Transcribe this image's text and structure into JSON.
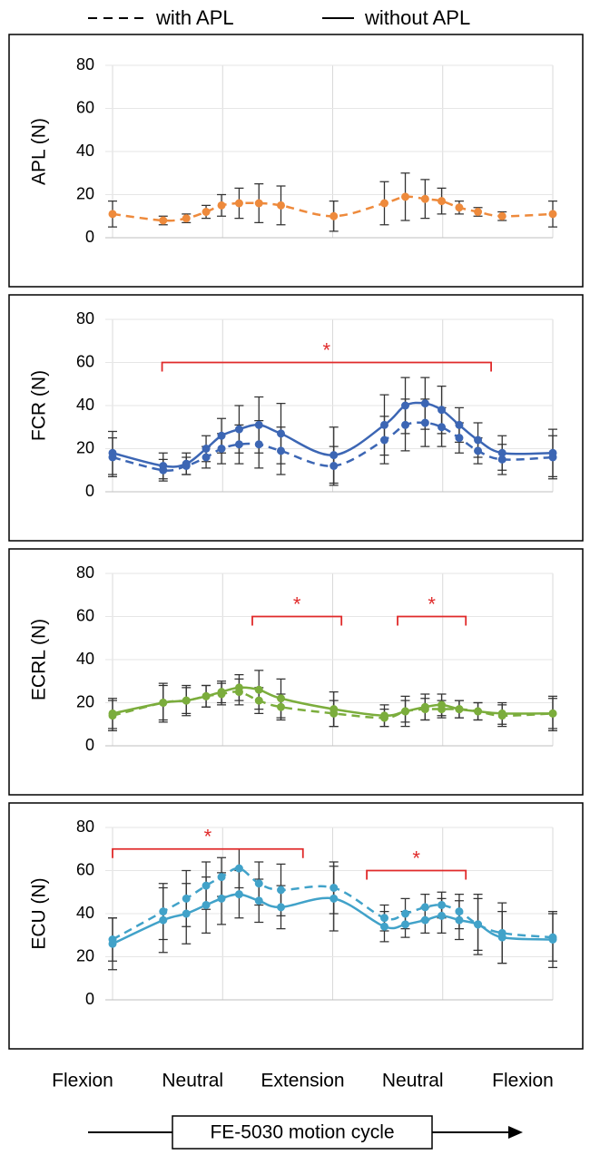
{
  "chart_data": {
    "type": "line",
    "legend": [
      "with APL",
      "without APL"
    ],
    "xlabel": "FE-5030 motion cycle",
    "xlim": [
      0,
      4
    ],
    "xticks": [
      {
        "value": 0,
        "label": "Flexion"
      },
      {
        "value": 1,
        "label": "Neutral"
      },
      {
        "value": 2,
        "label": "Extension"
      },
      {
        "value": 3,
        "label": "Neutral"
      },
      {
        "value": 4,
        "label": "Flexion"
      }
    ],
    "grid": true,
    "annotation_color": "#e02a2a",
    "panels": [
      {
        "ylabel": "APL (N)",
        "ylim": [
          0,
          80
        ],
        "yticks": [
          0,
          20,
          40,
          60,
          80
        ],
        "series": [
          {
            "color": "#ee8a3c",
            "dashed": true,
            "x": [
              0,
              0.46,
              0.67,
              0.85,
              0.99,
              1.15,
              1.33,
              1.53,
              2.01,
              2.47,
              2.66,
              2.84,
              2.99,
              3.15,
              3.32,
              3.54,
              4.0
            ],
            "values": [
              11,
              8,
              9,
              12,
              15,
              16,
              16,
              15,
              10,
              16,
              19,
              18,
              17,
              14,
              12,
              10,
              11
            ],
            "errors": [
              6,
              2,
              2,
              3,
              5,
              7,
              9,
              9,
              7,
              10,
              11,
              9,
              6,
              3,
              2,
              2,
              6
            ]
          }
        ],
        "annotations": []
      },
      {
        "ylabel": "FCR (N)",
        "ylim": [
          0,
          80
        ],
        "yticks": [
          0,
          20,
          40,
          60,
          80
        ],
        "series": [
          {
            "color": "#3c66b4",
            "dashed": true,
            "x": [
              0,
              0.46,
              0.67,
              0.85,
              0.99,
              1.15,
              1.33,
              1.53,
              2.01,
              2.47,
              2.66,
              2.84,
              2.99,
              3.15,
              3.32,
              3.54,
              4.0
            ],
            "values": [
              16,
              10,
              12,
              16,
              20,
              22,
              22,
              19,
              12,
              24,
              31,
              32,
              30,
              25,
              19,
              15,
              16
            ],
            "errors": [
              9,
              5,
              4,
              5,
              7,
              9,
              11,
              11,
              9,
              11,
              12,
              11,
              9,
              7,
              6,
              7,
              10
            ]
          },
          {
            "color": "#3c66b4",
            "dashed": false,
            "x": [
              0,
              0.46,
              0.67,
              0.85,
              0.99,
              1.15,
              1.33,
              1.53,
              2.01,
              2.47,
              2.66,
              2.84,
              2.99,
              3.15,
              3.32,
              3.54,
              4.0
            ],
            "values": [
              18,
              12,
              13,
              20,
              26,
              29,
              31,
              27,
              17,
              31,
              40,
              41,
              38,
              31,
              24,
              18,
              18
            ],
            "errors": [
              10,
              6,
              5,
              6,
              8,
              11,
              13,
              14,
              13,
              14,
              13,
              12,
              11,
              8,
              8,
              8,
              11
            ]
          }
        ],
        "annotations": [
          {
            "text": "*",
            "x": [
              0.45,
              3.44
            ],
            "y": 60
          }
        ]
      },
      {
        "ylabel": "ECRL (N)",
        "ylim": [
          0,
          80
        ],
        "yticks": [
          0,
          20,
          40,
          60,
          80
        ],
        "series": [
          {
            "color": "#7bad3c",
            "dashed": true,
            "x": [
              0,
              0.46,
              0.67,
              0.85,
              0.99,
              1.15,
              1.33,
              1.53,
              2.01,
              2.47,
              2.66,
              2.84,
              2.99,
              3.15,
              3.32,
              3.54,
              4.0
            ],
            "values": [
              14,
              20,
              21,
              23,
              24,
              25,
              21,
              18,
              15,
              13,
              16,
              17,
              17,
              17,
              16,
              14,
              15
            ],
            "errors": [
              7,
              8,
              6,
              5,
              5,
              6,
              6,
              6,
              6,
              4,
              5,
              5,
              4,
              4,
              4,
              5,
              7
            ]
          },
          {
            "color": "#7bad3c",
            "dashed": false,
            "x": [
              0,
              0.46,
              0.67,
              0.85,
              0.99,
              1.15,
              1.33,
              1.53,
              2.01,
              2.47,
              2.66,
              2.84,
              2.99,
              3.15,
              3.32,
              3.54,
              4.0
            ],
            "values": [
              15,
              20,
              21,
              23,
              25,
              27,
              26,
              22,
              17,
              14,
              16,
              18,
              19,
              17,
              16,
              15,
              15
            ],
            "errors": [
              7,
              9,
              7,
              5,
              5,
              6,
              9,
              9,
              8,
              5,
              7,
              6,
              5,
              4,
              4,
              5,
              8
            ]
          }
        ],
        "annotations": [
          {
            "text": "*",
            "x": [
              1.27,
              2.08
            ],
            "y": 60
          },
          {
            "text": "*",
            "x": [
              2.59,
              3.21
            ],
            "y": 60
          }
        ]
      },
      {
        "ylabel": "ECU (N)",
        "ylim": [
          0,
          80
        ],
        "yticks": [
          0,
          20,
          40,
          60,
          80
        ],
        "series": [
          {
            "color": "#41a2c9",
            "dashed": true,
            "x": [
              0,
              0.46,
              0.67,
              0.85,
              0.99,
              1.15,
              1.33,
              1.53,
              2.01,
              2.47,
              2.66,
              2.84,
              2.99,
              3.15,
              3.32,
              3.54,
              4.0
            ],
            "values": [
              28,
              41,
              47,
              53,
              57,
              61,
              54,
              51,
              52,
              38,
              40,
              43,
              44,
              41,
              35,
              31,
              29
            ],
            "errors": [
              10,
              13,
              13,
              11,
              9,
              9,
              10,
              12,
              12,
              6,
              7,
              6,
              6,
              8,
              14,
              14,
              11
            ]
          },
          {
            "color": "#41a2c9",
            "dashed": false,
            "x": [
              0,
              0.46,
              0.67,
              0.85,
              0.99,
              1.15,
              1.33,
              1.53,
              2.01,
              2.47,
              2.66,
              2.84,
              2.99,
              3.15,
              3.32,
              3.54,
              4.0
            ],
            "values": [
              26,
              37,
              40,
              44,
              47,
              49,
              46,
              43,
              47,
              34,
              35,
              37,
              39,
              37,
              35,
              29,
              28
            ],
            "errors": [
              12,
              15,
              14,
              13,
              12,
              11,
              10,
              10,
              15,
              7,
              6,
              6,
              8,
              9,
              12,
              12,
              13
            ]
          }
        ],
        "annotations": [
          {
            "text": "*",
            "x": [
              0.0,
              1.73
            ],
            "y": 70
          },
          {
            "text": "*",
            "x": [
              2.31,
              3.21
            ],
            "y": 60
          }
        ]
      }
    ]
  }
}
